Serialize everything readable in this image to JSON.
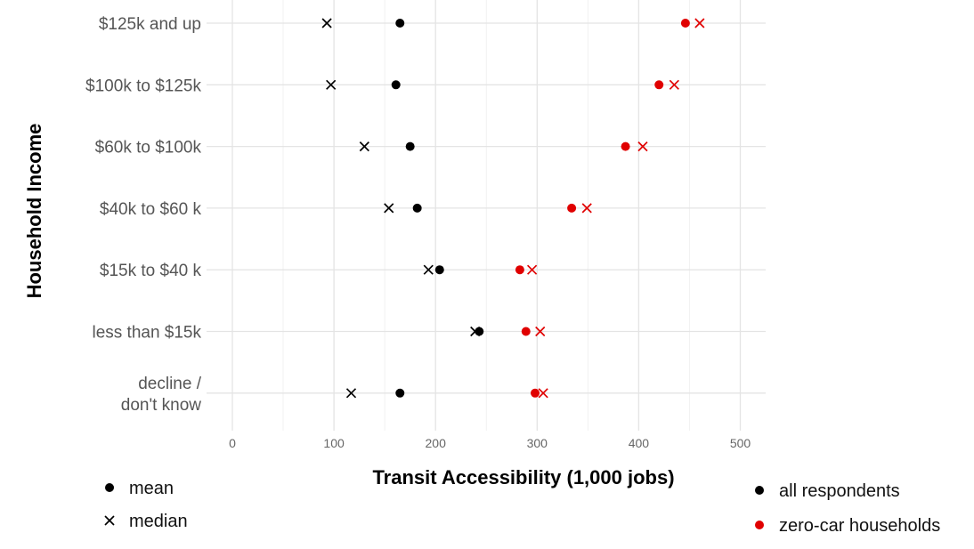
{
  "chart_data": {
    "type": "scatter",
    "ylabel": "Household Income",
    "xlabel": "Transit Accessibility (1,000 jobs)",
    "xlim": [
      0,
      520
    ],
    "xticks": [
      0,
      100,
      200,
      300,
      400,
      500
    ],
    "grid": true,
    "categories": [
      [
        "$125k and up"
      ],
      [
        "$100k to $125k"
      ],
      [
        "$60k to $100k"
      ],
      [
        "$40k to $60 k"
      ],
      [
        "$15k to $40 k"
      ],
      [
        "less than $15k"
      ],
      [
        "decline /",
        "don't know"
      ]
    ],
    "series": [
      {
        "name": "all respondents",
        "color": "#000000",
        "mean": [
          165,
          161,
          175,
          182,
          204,
          243,
          165
        ],
        "median": [
          93,
          97,
          130,
          154,
          193,
          239,
          117
        ]
      },
      {
        "name": "zero-car households",
        "color": "#e00000",
        "mean": [
          446,
          420,
          387,
          334,
          283,
          289,
          298
        ],
        "median": [
          460,
          435,
          404,
          349,
          295,
          303,
          306
        ]
      }
    ],
    "shape_legend": [
      {
        "label": "mean",
        "shape": "dot"
      },
      {
        "label": "median",
        "shape": "cross"
      }
    ],
    "color_legend_placement": "bottom-right",
    "shape_legend_placement": "bottom-left"
  }
}
